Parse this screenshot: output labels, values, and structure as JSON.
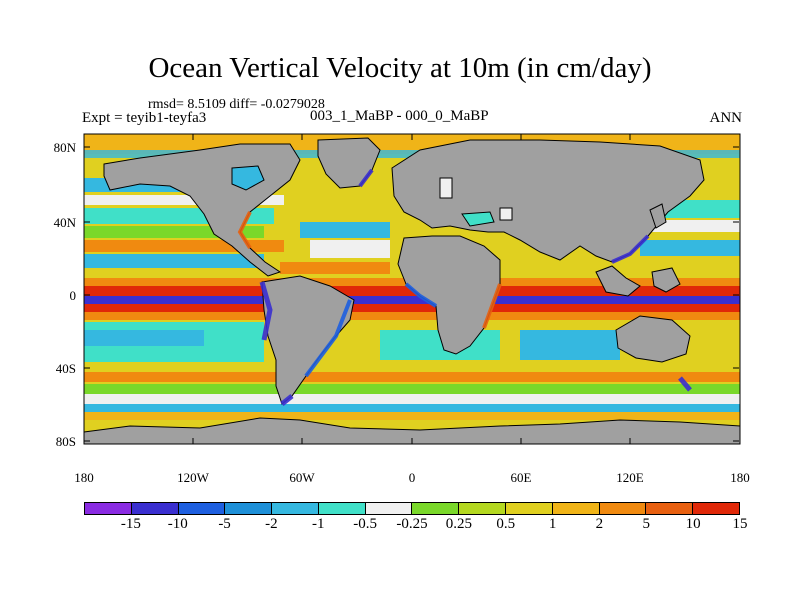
{
  "title": "Ocean Vertical Velocity at 10m (in cm/day)",
  "stats": "rmsd= 8.5109 diff= -0.0279028",
  "expt": "Expt = teyib1-teyfa3",
  "subtitle": "003_1_MaBP - 000_0_MaBP",
  "season": "ANN",
  "lat_labels": [
    "80N",
    "40N",
    "0",
    "40S",
    "80S"
  ],
  "lon_labels": [
    "180",
    "120W",
    "60W",
    "0",
    "60E",
    "120E",
    "180"
  ],
  "colorbar": {
    "colors": [
      "#8a2be2",
      "#3a2fd0",
      "#1e5fe0",
      "#1e90d8",
      "#35b8e0",
      "#40e0c8",
      "#f0f0f0",
      "#7ad82a",
      "#b4d820",
      "#e0d020",
      "#f0b418",
      "#f08a10",
      "#e86010",
      "#e02808"
    ],
    "labels": [
      "-15",
      "-10",
      "-5",
      "-2",
      "-1",
      "-0.5",
      "-0.25",
      "0.25",
      "0.5",
      "1",
      "2",
      "5",
      "10",
      "15"
    ]
  },
  "map_colors": {
    "land": "#a0a0a0",
    "outline": "#000000"
  }
}
